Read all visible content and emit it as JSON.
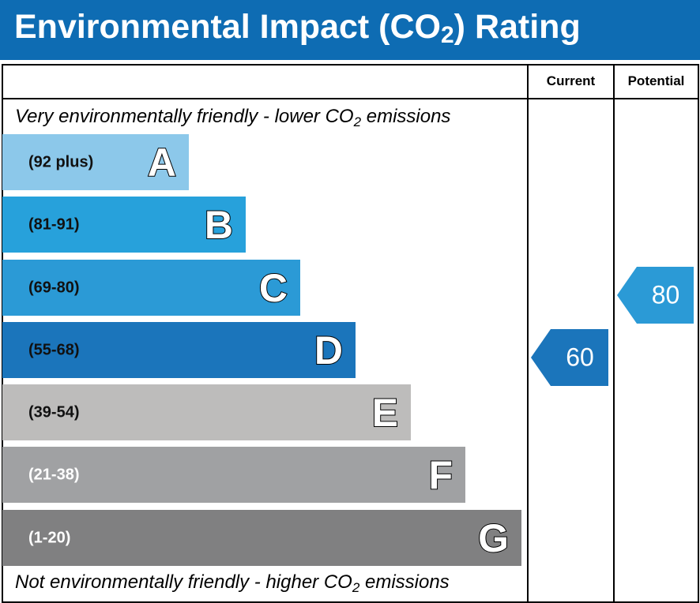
{
  "title": {
    "pre": "Environmental Impact (CO",
    "sub": "2",
    "post": ") Rating"
  },
  "columns": {
    "current": "Current",
    "potential": "Potential"
  },
  "top_note": {
    "pre": "Very environmentally friendly - lower CO",
    "sub": "2",
    "post": " emissions"
  },
  "bottom_note": {
    "pre": "Not environmentally friendly - higher CO",
    "sub": "2",
    "post": " emissions"
  },
  "chart_data": {
    "type": "bar",
    "title": "Environmental Impact (CO2) Rating",
    "bands": [
      {
        "letter": "A",
        "range": "(92 plus)",
        "color": "#8cc8ea",
        "text_color": "#111111"
      },
      {
        "letter": "B",
        "range": "(81-91)",
        "color": "#27a1db",
        "text_color": "#111111"
      },
      {
        "letter": "C",
        "range": "(69-80)",
        "color": "#2b9ad6",
        "text_color": "#111111"
      },
      {
        "letter": "D",
        "range": "(55-68)",
        "color": "#1b75bb",
        "text_color": "#111111"
      },
      {
        "letter": "E",
        "range": "(39-54)",
        "color": "#bdbcbb",
        "text_color": "#111111"
      },
      {
        "letter": "F",
        "range": "(21-38)",
        "color": "#a0a1a3",
        "text_color": "#ffffff"
      },
      {
        "letter": "G",
        "range": "(1-20)",
        "color": "#808081",
        "text_color": "#ffffff"
      }
    ],
    "current": {
      "value": "60",
      "band": "D",
      "color": "#1b75bb"
    },
    "potential": {
      "value": "80",
      "band": "C",
      "color": "#2b9ad6"
    }
  }
}
